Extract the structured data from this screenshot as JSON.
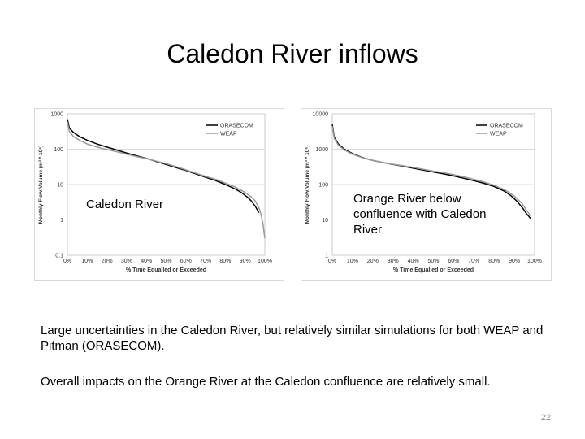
{
  "slide": {
    "title": "Caledon River inflows",
    "page_number": "22",
    "paragraph1": "Large uncertainties in the Caledon River, but relatively similar simulations for both WEAP and Pitman (ORASECOM).",
    "paragraph2": "Overall impacts on the Orange River at the Caledon confluence are relatively small."
  },
  "chart_data": [
    {
      "type": "line",
      "inner_label": "Caledon River",
      "xlabel": "% Time Equalled or Exceeded",
      "ylabel": "Monthly Flow Volume (m³ * 10⁶)",
      "yscale": "log",
      "xlim": [
        0,
        100
      ],
      "ylim": [
        0.1,
        1000
      ],
      "x_ticks": [
        "0%",
        "10%",
        "20%",
        "30%",
        "40%",
        "50%",
        "60%",
        "70%",
        "80%",
        "90%",
        "100%"
      ],
      "y_ticks": [
        "0.1",
        "1",
        "10",
        "100",
        "1000"
      ],
      "y_tick_values": [
        0.1,
        1,
        10,
        100,
        1000
      ],
      "grid": true,
      "legend_position": "top-right",
      "series": [
        {
          "name": "ORASECOM",
          "color": "#000000",
          "x": [
            0,
            1,
            3,
            6,
            10,
            15,
            20,
            25,
            30,
            35,
            40,
            45,
            50,
            55,
            60,
            65,
            70,
            75,
            80,
            85,
            88,
            91,
            93,
            95,
            96,
            97
          ],
          "y": [
            700,
            400,
            300,
            230,
            180,
            140,
            115,
            95,
            78,
            65,
            55,
            45,
            37,
            30,
            25,
            20,
            16,
            13,
            10,
            7.5,
            6,
            4.5,
            3.5,
            2.5,
            2,
            1.6
          ]
        },
        {
          "name": "WEAP",
          "color": "#9a9a9a",
          "x": [
            0,
            1,
            3,
            6,
            10,
            15,
            20,
            25,
            30,
            35,
            40,
            45,
            50,
            55,
            60,
            65,
            70,
            75,
            80,
            85,
            90,
            93,
            95,
            97,
            98,
            99,
            100
          ],
          "y": [
            600,
            320,
            230,
            180,
            140,
            115,
            98,
            85,
            72,
            62,
            54,
            46,
            39,
            32,
            26,
            21,
            17,
            14,
            11,
            8.5,
            6,
            4.5,
            3.5,
            2.2,
            1.5,
            0.8,
            0.3
          ]
        }
      ]
    },
    {
      "type": "line",
      "inner_label": "Orange River below confluence with Caledon River",
      "xlabel": "% Time Equalled or Exceeded",
      "ylabel": "Monthly Flow Volume (m³ * 10⁶)",
      "yscale": "log",
      "xlim": [
        0,
        100
      ],
      "ylim": [
        1,
        10000
      ],
      "x_ticks": [
        "0%",
        "10%",
        "20%",
        "30%",
        "40%",
        "50%",
        "60%",
        "70%",
        "80%",
        "90%",
        "100%"
      ],
      "y_ticks": [
        "1",
        "10",
        "100",
        "1000",
        "10000"
      ],
      "y_tick_values": [
        1,
        10,
        100,
        1000,
        10000
      ],
      "grid": true,
      "legend_position": "top-right",
      "series": [
        {
          "name": "ORASECOM",
          "color": "#000000",
          "x": [
            0,
            1,
            3,
            6,
            10,
            15,
            20,
            25,
            30,
            35,
            40,
            45,
            50,
            55,
            60,
            65,
            70,
            75,
            80,
            85,
            88,
            91,
            94,
            96,
            98
          ],
          "y": [
            5000,
            2200,
            1400,
            1000,
            750,
            580,
            480,
            420,
            370,
            330,
            290,
            255,
            225,
            200,
            175,
            150,
            128,
            108,
            88,
            65,
            50,
            35,
            22,
            15,
            11
          ]
        },
        {
          "name": "WEAP",
          "color": "#9a9a9a",
          "x": [
            0,
            1,
            3,
            6,
            10,
            15,
            20,
            25,
            30,
            35,
            40,
            45,
            50,
            55,
            60,
            65,
            70,
            75,
            80,
            85,
            88,
            91,
            94,
            96,
            98
          ],
          "y": [
            4500,
            2000,
            1300,
            950,
            720,
            570,
            480,
            420,
            375,
            340,
            305,
            270,
            240,
            215,
            190,
            165,
            140,
            118,
            95,
            72,
            57,
            42,
            28,
            19,
            13
          ]
        }
      ]
    }
  ]
}
